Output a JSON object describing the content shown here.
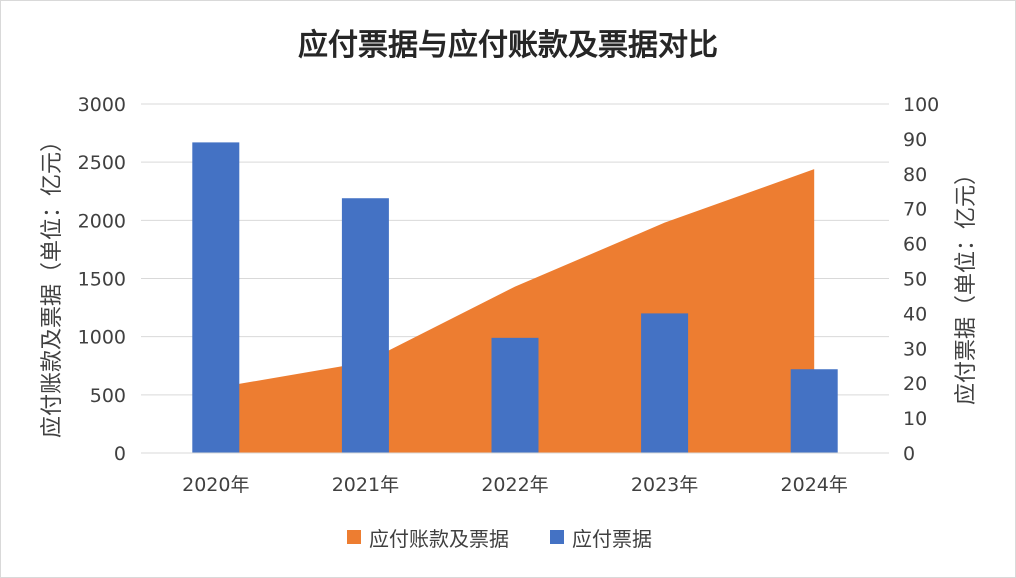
{
  "chart_data": {
    "type": "bar",
    "title": "应付票据与应付账款及票据对比",
    "categories": [
      "2020年",
      "2021年",
      "2022年",
      "2023年",
      "2024年"
    ],
    "series": [
      {
        "name": "应付账款及票据",
        "type": "area",
        "axis": "left",
        "color": "#ED7D31",
        "values": [
          560,
          780,
          1430,
          1980,
          2440
        ]
      },
      {
        "name": "应付票据",
        "type": "bar",
        "axis": "right",
        "color": "#4472C4",
        "values": [
          89,
          73,
          33,
          40,
          24
        ]
      }
    ],
    "y_left": {
      "label": "应付账款及票据（单位：亿元）",
      "ylim": [
        0,
        3000
      ],
      "ticks": [
        0,
        500,
        1000,
        1500,
        2000,
        2500,
        3000
      ]
    },
    "y_right": {
      "label": "应付票据（单位：亿元）",
      "ylim": [
        0,
        100
      ],
      "ticks": [
        0,
        10,
        20,
        30,
        40,
        50,
        60,
        70,
        80,
        90,
        100
      ]
    },
    "grid": true,
    "legend_position": "bottom"
  }
}
